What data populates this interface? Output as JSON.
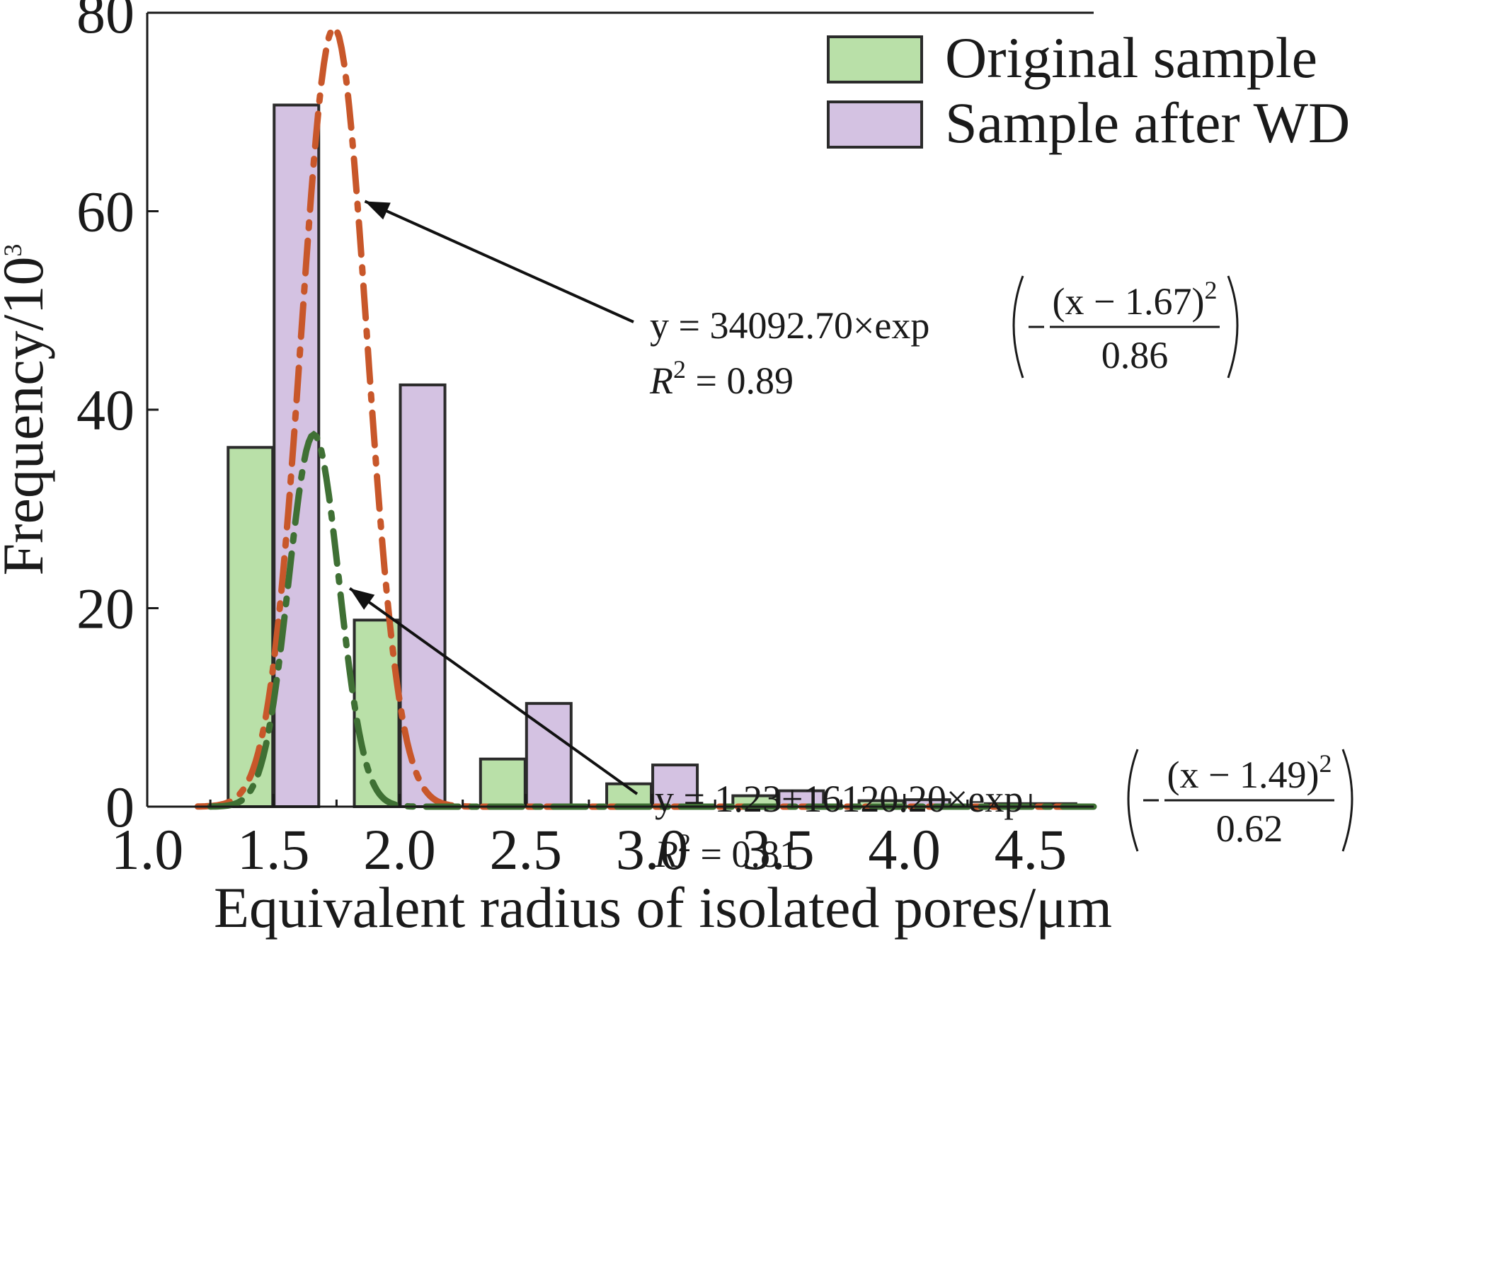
{
  "chart_data": {
    "type": "bar",
    "xlabel": "Equivalent radius of isolated pores/μm",
    "ylabel": "Frequency/10",
    "ylabel_sup": "3",
    "xlim": [
      1.0,
      4.75
    ],
    "ylim": [
      0,
      80
    ],
    "x_ticks": [
      1.0,
      1.5,
      2.0,
      2.5,
      3.0,
      3.5,
      4.0,
      4.5
    ],
    "x_tick_labels": [
      "1.0",
      "1.5",
      "2.0",
      "2.5",
      "3.0",
      "3.5",
      "4.0",
      "4.5"
    ],
    "y_ticks": [
      0,
      20,
      40,
      60,
      80
    ],
    "y_tick_labels": [
      "0",
      "20",
      "40",
      "60",
      "80"
    ],
    "categories": [
      "1.5",
      "2.0",
      "2.5",
      "3.0",
      "3.5",
      "4.0",
      "4.5"
    ],
    "category_centers": [
      1.5,
      2.0,
      2.5,
      3.0,
      3.5,
      4.0,
      4.5
    ],
    "series": [
      {
        "name": "Original sample",
        "color": "#b9e0a8",
        "values": [
          36.2,
          18.8,
          4.8,
          2.3,
          1.1,
          0.6,
          0.3
        ]
      },
      {
        "name": "Sample after WD",
        "color": "#d4c2e2",
        "values": [
          70.7,
          42.5,
          10.4,
          4.2,
          1.6,
          0.7,
          0.3
        ]
      }
    ],
    "fits": [
      {
        "series": "Sample after WD",
        "color": "#c8572a",
        "style": "dash-dot",
        "y0": 0,
        "A": 78.5,
        "mu": 1.74,
        "sigma": 0.13,
        "x_range": [
          1.2,
          4.75
        ],
        "eq_main": "y = 34092.70×exp",
        "eq_numer": "(x − 1.67)",
        "eq_numer_sup": "2",
        "eq_denom": "0.86",
        "r2_label": "R",
        "r2_sup": "2",
        "r2_value": " = 0.89",
        "arrow_target": [
          1.84,
          61
        ]
      },
      {
        "series": "Original sample",
        "color": "#3f7034",
        "style": "dash-dot",
        "y0": 0,
        "A": 37.5,
        "mu": 1.66,
        "sigma": 0.1,
        "x_range": [
          1.25,
          4.75
        ],
        "eq_main": "y = 1.23+16120.20×exp",
        "eq_numer": "(x − 1.49)",
        "eq_numer_sup": "2",
        "eq_denom": "0.62",
        "r2_label": "R",
        "r2_sup": "2",
        "r2_value": " = 0.81",
        "arrow_target": [
          1.78,
          22
        ]
      }
    ],
    "legend": {
      "position": "top-right"
    },
    "grid": false
  }
}
